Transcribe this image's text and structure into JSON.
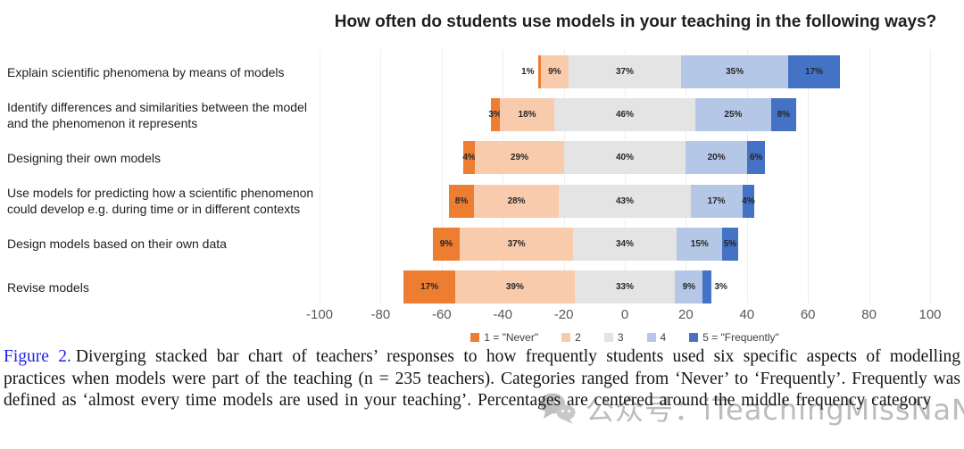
{
  "chart_data": {
    "type": "bar",
    "orientation": "horizontal",
    "variant": "diverging-stacked",
    "title": "How often do students use models in your teaching in the following ways?",
    "categories": [
      "Explain scientific phenomena by means of models",
      "Identify differences and similarities between the model and the phenomenon it represents",
      "Designing their own models",
      "Use models for predicting how a scientific phenomenon could develop e.g. during time or in different contexts",
      "Design models based on their own data",
      "Revise models"
    ],
    "series": [
      {
        "name": "1 = \"Never\"",
        "color": "#ED7D31",
        "values": [
          1,
          3,
          4,
          8,
          9,
          17
        ]
      },
      {
        "name": "2",
        "color": "#F8CBAD",
        "values": [
          9,
          18,
          29,
          28,
          37,
          39
        ]
      },
      {
        "name": "3",
        "color": "#E5E4E4",
        "values": [
          37,
          46,
          40,
          43,
          34,
          33
        ]
      },
      {
        "name": "4",
        "color": "#B4C7E7",
        "values": [
          35,
          25,
          20,
          17,
          15,
          9
        ]
      },
      {
        "name": "5 = \"Frequently\"",
        "color": "#4472C4",
        "values": [
          17,
          8,
          6,
          4,
          5,
          3
        ]
      }
    ],
    "unit": "%",
    "axis": {
      "min": -100,
      "max": 100,
      "ticks": [
        -100,
        -80,
        -60,
        -40,
        -20,
        0,
        20,
        40,
        60,
        80,
        100
      ]
    },
    "alignment": "middle category (3) centered on zero",
    "legend_position": "bottom",
    "grid": "faint vertical gridlines at ticks",
    "outside_value_labels": [
      {
        "row": 0,
        "segment": 0,
        "side": "left"
      },
      {
        "row": 5,
        "segment": 4,
        "side": "right"
      }
    ]
  },
  "caption": {
    "figure_label": "Figure 2.",
    "text": "Diverging stacked bar chart of teachers’ responses to how frequently students used six specific aspects of modelling practices when models were part of the teaching (n = 235 teachers). Categories ranged from ‘Never’ to ‘Frequently’. Frequently was defined as ‘almost every time models are used in your teaching’. Percentages are centered around the middle frequency category"
  },
  "watermark": {
    "icon": "wechat-icon",
    "text": "公众号：iTeachingMissNaNa"
  }
}
